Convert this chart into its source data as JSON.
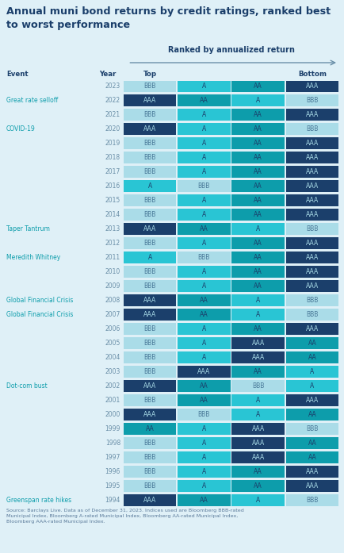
{
  "title": "Annual muni bond returns by credit ratings, ranked best\nto worst performance",
  "subtitle": "Ranked by annualized return",
  "rows": [
    {
      "event": "",
      "year": "2023",
      "cols": [
        "BBB",
        "A",
        "AA",
        "AAA"
      ]
    },
    {
      "event": "Great rate selloff",
      "year": "2022",
      "cols": [
        "AAA",
        "AA",
        "A",
        "BBB"
      ]
    },
    {
      "event": "",
      "year": "2021",
      "cols": [
        "BBB",
        "A",
        "AA",
        "AAA"
      ]
    },
    {
      "event": "COVID-19",
      "year": "2020",
      "cols": [
        "AAA",
        "A",
        "AA",
        "BBB"
      ]
    },
    {
      "event": "",
      "year": "2019",
      "cols": [
        "BBB",
        "A",
        "AA",
        "AAA"
      ]
    },
    {
      "event": "",
      "year": "2018",
      "cols": [
        "BBB",
        "A",
        "AA",
        "AAA"
      ]
    },
    {
      "event": "",
      "year": "2017",
      "cols": [
        "BBB",
        "A",
        "AA",
        "AAA"
      ]
    },
    {
      "event": "",
      "year": "2016",
      "cols": [
        "A",
        "BBB",
        "AA",
        "AAA"
      ]
    },
    {
      "event": "",
      "year": "2015",
      "cols": [
        "BBB",
        "A",
        "AA",
        "AAA"
      ]
    },
    {
      "event": "",
      "year": "2014",
      "cols": [
        "BBB",
        "A",
        "AA",
        "AAA"
      ]
    },
    {
      "event": "Taper Tantrum",
      "year": "2013",
      "cols": [
        "AAA",
        "AA",
        "A",
        "BBB"
      ]
    },
    {
      "event": "",
      "year": "2012",
      "cols": [
        "BBB",
        "A",
        "AA",
        "AAA"
      ]
    },
    {
      "event": "Meredith Whitney",
      "year": "2011",
      "cols": [
        "A",
        "BBB",
        "AA",
        "AAA"
      ]
    },
    {
      "event": "",
      "year": "2010",
      "cols": [
        "BBB",
        "A",
        "AA",
        "AAA"
      ]
    },
    {
      "event": "",
      "year": "2009",
      "cols": [
        "BBB",
        "A",
        "AA",
        "AAA"
      ]
    },
    {
      "event": "Global Financial Crisis",
      "year": "2008",
      "cols": [
        "AAA",
        "AA",
        "A",
        "BBB"
      ]
    },
    {
      "event": "Global Financial Crisis",
      "year": "2007",
      "cols": [
        "AAA",
        "AA",
        "A",
        "BBB"
      ]
    },
    {
      "event": "",
      "year": "2006",
      "cols": [
        "BBB",
        "A",
        "AA",
        "AAA"
      ]
    },
    {
      "event": "",
      "year": "2005",
      "cols": [
        "BBB",
        "A",
        "AAA",
        "AA"
      ]
    },
    {
      "event": "",
      "year": "2004",
      "cols": [
        "BBB",
        "A",
        "AAA",
        "AA"
      ]
    },
    {
      "event": "",
      "year": "2003",
      "cols": [
        "BBB",
        "AAA",
        "AA",
        "A"
      ]
    },
    {
      "event": "Dot-com bust",
      "year": "2002",
      "cols": [
        "AAA",
        "AA",
        "BBB",
        "A"
      ]
    },
    {
      "event": "",
      "year": "2001",
      "cols": [
        "BBB",
        "AA",
        "A",
        "AAA"
      ]
    },
    {
      "event": "",
      "year": "2000",
      "cols": [
        "AAA",
        "BBB",
        "A",
        "AA"
      ]
    },
    {
      "event": "",
      "year": "1999",
      "cols": [
        "AA",
        "A",
        "AAA",
        "BBB"
      ]
    },
    {
      "event": "",
      "year": "1998",
      "cols": [
        "BBB",
        "A",
        "AAA",
        "AA"
      ]
    },
    {
      "event": "",
      "year": "1997",
      "cols": [
        "BBB",
        "A",
        "AAA",
        "AA"
      ]
    },
    {
      "event": "",
      "year": "1996",
      "cols": [
        "BBB",
        "A",
        "AA",
        "AAA"
      ]
    },
    {
      "event": "",
      "year": "1995",
      "cols": [
        "BBB",
        "A",
        "AA",
        "AAA"
      ]
    },
    {
      "event": "Greenspan rate hikes",
      "year": "1994",
      "cols": [
        "AAA",
        "AA",
        "A",
        "BBB"
      ]
    }
  ],
  "color_map": {
    "AAA": "#1b3f6b",
    "AA": "#0d9dab",
    "A": "#29c5d4",
    "BBB": "#aadce8"
  },
  "text_color_map": {
    "AAA": "#aadce8",
    "AA": "#1b3f6b",
    "A": "#1b3f6b",
    "BBB": "#4a7a99"
  },
  "bg_color": "#dff0f7",
  "title_color": "#1b3f6b",
  "event_color": "#0d9dab",
  "year_color": "#6a8fa8",
  "footer": "Source: Barclays Live. Data as of December 31, 2023. Indices used are Bloomberg BBB-rated\nMunicipal Index, Bloomberg A-rated Municipal Index, Bloomberg AA-rated Municipal Index,\nBloomberg AAA-rated Municipal Index."
}
